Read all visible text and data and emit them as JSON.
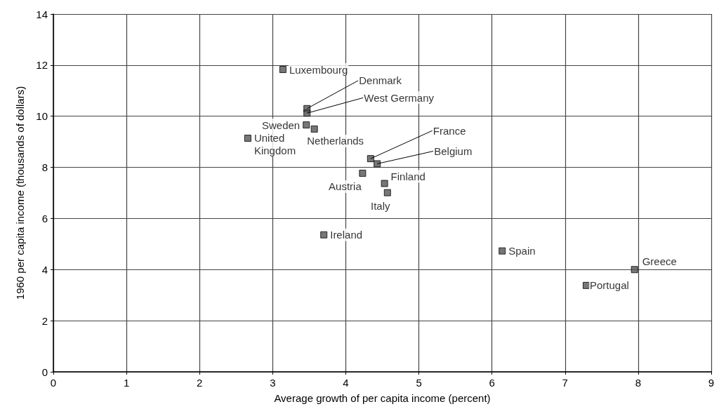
{
  "chart_data": {
    "type": "scatter",
    "xlabel": "Average growth of per capita income (percent)",
    "ylabel": "1960 per capita income (thousands of dollars)",
    "x": [
      3.14,
      3.47,
      3.47,
      3.46,
      3.57,
      2.66,
      4.34,
      4.43,
      4.23,
      4.53,
      4.57,
      3.7,
      6.14,
      7.95,
      7.29
    ],
    "values": [
      11.83,
      10.3,
      10.12,
      9.66,
      9.5,
      9.14,
      8.34,
      8.14,
      7.77,
      7.37,
      7.01,
      5.36,
      4.73,
      4.0,
      3.38
    ],
    "color": "#555555",
    "marker": "square",
    "xlim": [
      0,
      9
    ],
    "xticks": [
      0,
      1,
      2,
      3,
      4,
      5,
      6,
      7,
      8,
      9
    ],
    "ylim": [
      0,
      14
    ],
    "yticks": [
      0,
      2,
      4,
      6,
      8,
      10,
      12,
      14
    ],
    "grid": true,
    "annotations": [
      {
        "text": "Luxembourg",
        "x": 3.14,
        "y": 11.83
      },
      {
        "text": "Denmark",
        "x": 3.47,
        "y": 10.3
      },
      {
        "text": "West Germany",
        "x": 3.47,
        "y": 10.12
      },
      {
        "text": "Sweden",
        "x": 3.46,
        "y": 9.66
      },
      {
        "text": "Netherlands",
        "x": 3.57,
        "y": 9.5
      },
      {
        "text": "United Kingdom",
        "x": 2.66,
        "y": 9.14
      },
      {
        "text": "France",
        "x": 4.34,
        "y": 8.34
      },
      {
        "text": "Belgium",
        "x": 4.43,
        "y": 8.14
      },
      {
        "text": "Austria",
        "x": 4.23,
        "y": 7.77
      },
      {
        "text": "Finland",
        "x": 4.53,
        "y": 7.37
      },
      {
        "text": "Italy",
        "x": 4.57,
        "y": 7.01
      },
      {
        "text": "Ireland",
        "x": 3.7,
        "y": 5.36
      },
      {
        "text": "Spain",
        "x": 6.14,
        "y": 4.73
      },
      {
        "text": "Greece",
        "x": 7.95,
        "y": 4.0
      },
      {
        "text": "Portugal",
        "x": 7.29,
        "y": 3.38
      }
    ]
  }
}
